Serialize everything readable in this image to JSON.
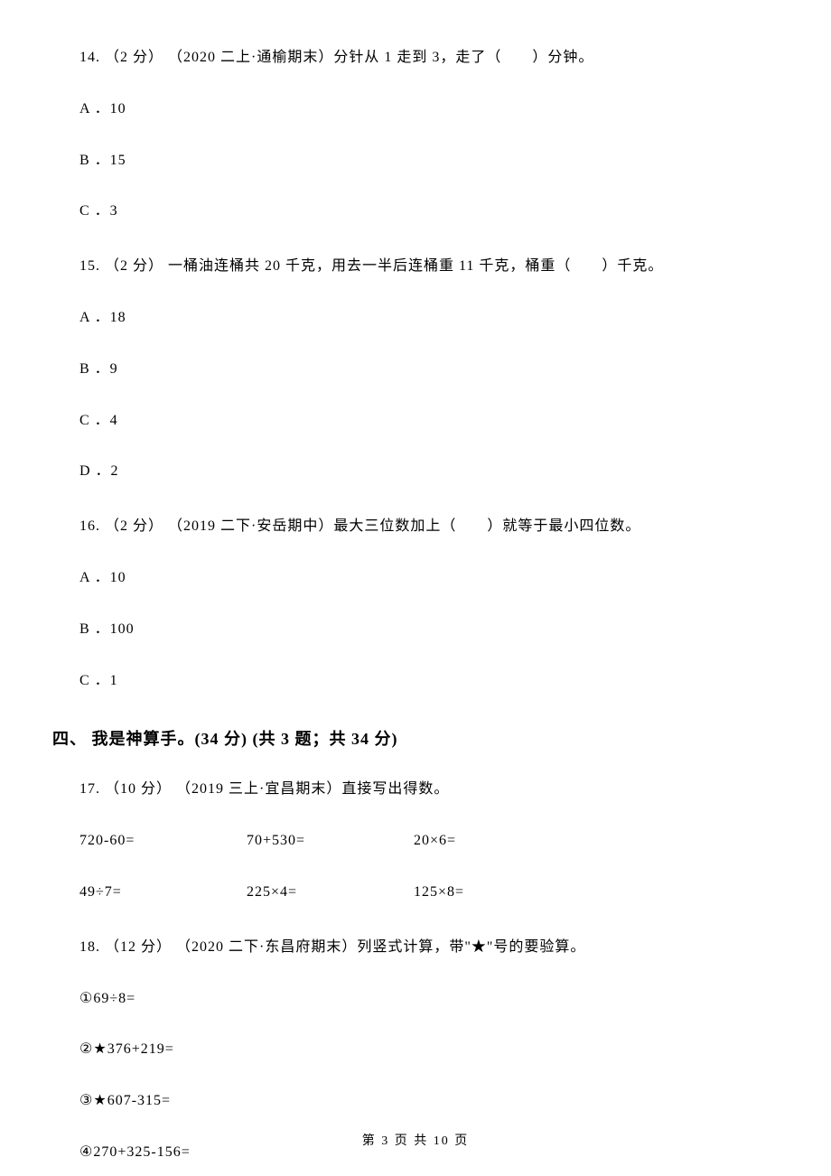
{
  "q14": {
    "text": "14. （2 分） （2020 二上·通榆期末）分针从 1 走到 3，走了（　　）分钟。",
    "options": {
      "a": "A ．10",
      "b": "B ．15",
      "c": "C ．3"
    }
  },
  "q15": {
    "text": "15. （2 分） 一桶油连桶共 20 千克，用去一半后连桶重 11 千克，桶重（　　）千克。",
    "options": {
      "a": "A ．18",
      "b": "B ．9",
      "c": "C ．4",
      "d": "D ．2"
    }
  },
  "q16": {
    "text": "16. （2 分） （2019 二下·安岳期中）最大三位数加上（　　）就等于最小四位数。",
    "options": {
      "a": "A ．10",
      "b": "B ．100",
      "c": "C ．1"
    }
  },
  "section4": {
    "title": "四、 我是神算手。(34 分)  (共 3 题；共 34 分)"
  },
  "q17": {
    "text": "17. （10 分） （2019 三上·宜昌期末）直接写出得数。",
    "row1": {
      "a": "720-60=",
      "b": "70+530=",
      "c": "20×6="
    },
    "row2": {
      "a": "49÷7=",
      "b": "225×4=",
      "c": "125×8="
    }
  },
  "q18": {
    "text": "18. （12 分） （2020 二下·东昌府期末）列竖式计算，带\"★\"号的要验算。",
    "items": {
      "a": "①69÷8=",
      "b": "②★376+219=",
      "c": "③★607-315=",
      "d": "④270+325-156="
    }
  },
  "footer": {
    "text": "第 3 页 共 10 页"
  }
}
